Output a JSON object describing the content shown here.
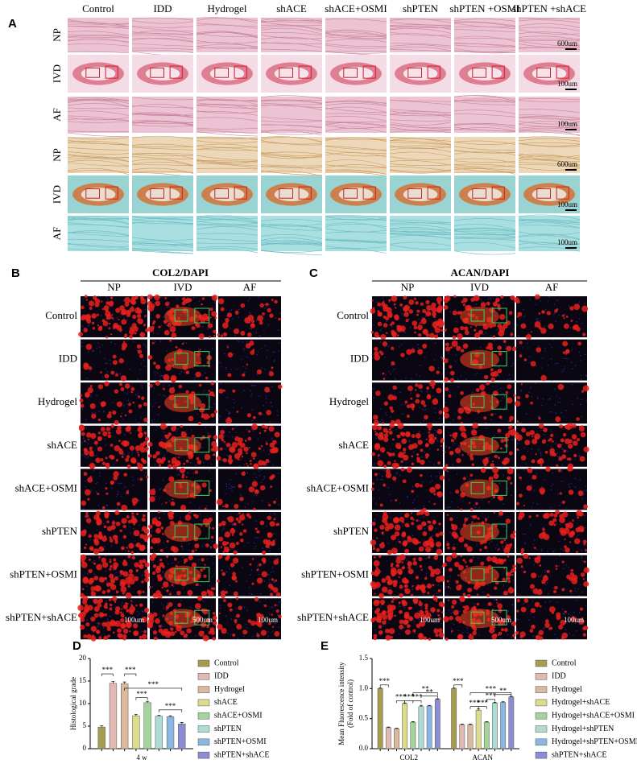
{
  "panel_a": {
    "label": "A",
    "columns": [
      "Control",
      "IDD",
      "Hydrogel",
      "shACE",
      "shACE+OSMI",
      "shPTEN",
      "shPTEN +OSMI",
      "shPTEN +shACE"
    ],
    "rows": [
      "NP",
      "IVD",
      "AF",
      "NP",
      "IVD",
      "AF"
    ],
    "scale_labels": [
      "600um",
      "100um",
      "100um",
      "600um",
      "100um",
      "100um"
    ]
  },
  "panel_b": {
    "label": "B",
    "title": "COL2/DAPI",
    "columns": [
      "NP",
      "IVD",
      "AF"
    ],
    "rows": [
      "Control",
      "IDD",
      "Hydrogel",
      "shACE",
      "shACE+OSMI",
      "shPTEN",
      "shPTEN+OSMI",
      "shPTEN+shACE"
    ],
    "scale_labels": [
      "100um",
      "500um",
      "100um"
    ]
  },
  "panel_c": {
    "label": "C",
    "title": "ACAN/DAPI",
    "columns": [
      "NP",
      "IVD",
      "AF"
    ],
    "rows": [
      "Control",
      "IDD",
      "Hydrogel",
      "shACE",
      "shACE+OSMI",
      "shPTEN",
      "shPTEN+OSMI",
      "shPTEN+shACE"
    ],
    "scale_labels": [
      "100um",
      "500um",
      "100um"
    ]
  },
  "chart_data": [
    {
      "type": "bar",
      "panel_label": "D",
      "y_label": "Histological grade",
      "categories": [
        "4 w"
      ],
      "ylim": [
        0,
        20
      ],
      "yticks": [
        0,
        5,
        10,
        15,
        20
      ],
      "series": [
        {
          "name": "Control",
          "color": "#a69c50",
          "values": [
            4.8
          ],
          "errors": [
            0.3
          ]
        },
        {
          "name": "IDD",
          "color": "#e2b8b4",
          "values": [
            14.5
          ],
          "errors": [
            0.4
          ]
        },
        {
          "name": "Hydrogel",
          "color": "#dcb89c",
          "values": [
            14.4
          ],
          "errors": [
            0.4
          ]
        },
        {
          "name": "shACE",
          "color": "#dcdc8c",
          "values": [
            7.3
          ],
          "errors": [
            0.3
          ]
        },
        {
          "name": "shACE+OSMI",
          "color": "#a2d49c",
          "values": [
            10.2
          ],
          "errors": [
            0.3
          ]
        },
        {
          "name": "shPTEN",
          "color": "#acdcd4",
          "values": [
            7.2
          ],
          "errors": [
            0.2
          ]
        },
        {
          "name": "shPTEN+OSMI",
          "color": "#8cb6e2",
          "values": [
            7.1
          ],
          "errors": [
            0.2
          ]
        },
        {
          "name": "shPTEN+shACE",
          "color": "#8c8cd2",
          "values": [
            5.5
          ],
          "errors": [
            0.3
          ]
        }
      ],
      "significance": [
        "***",
        "***",
        "***",
        "***",
        "***"
      ]
    },
    {
      "type": "bar",
      "panel_label": "E",
      "y_label": [
        "Mean Fluorescence intensity",
        "(Fold of control)"
      ],
      "categories": [
        "COL2",
        "ACAN"
      ],
      "ylim": [
        0,
        1.5
      ],
      "yticks": [
        {
          "value": 0,
          "label": "0.0"
        },
        {
          "value": 0.5,
          "label": "0.5"
        },
        {
          "value": 1,
          "label": "1.0"
        },
        {
          "value": 1.5,
          "label": "1.5"
        }
      ],
      "series": [
        {
          "name": "Control",
          "color": "#a69c50",
          "values": [
            1.0,
            1.0
          ],
          "errors": [
            0.01,
            0.01
          ]
        },
        {
          "name": "IDD",
          "color": "#e2b8b4",
          "values": [
            0.35,
            0.4
          ],
          "errors": [
            0.01,
            0.01
          ]
        },
        {
          "name": "Hydrogel",
          "color": "#dcb89c",
          "values": [
            0.33,
            0.4
          ],
          "errors": [
            0.01,
            0.01
          ]
        },
        {
          "name": "Hydrogel+shACE",
          "color": "#dcdc8c",
          "values": [
            0.75,
            0.64
          ],
          "errors": [
            0.01,
            0.02
          ]
        },
        {
          "name": "Hydrogel+shACE+OSMI",
          "color": "#a2d49c",
          "values": [
            0.44,
            0.44
          ],
          "errors": [
            0.01,
            0.01
          ]
        },
        {
          "name": "Hydrogel+shPTEN",
          "color": "#acdcd4",
          "values": [
            0.7,
            0.76
          ],
          "errors": [
            0.02,
            0.01
          ]
        },
        {
          "name": "Hydrogel+shPTEN+OSMI",
          "color": "#8cb6e2",
          "values": [
            0.71,
            0.77
          ],
          "errors": [
            0.01,
            0.01
          ]
        },
        {
          "name": "shPTEN+shACE",
          "color": "#8c8cd2",
          "values": [
            0.82,
            0.86
          ],
          "errors": [
            0.01,
            0.01
          ]
        }
      ],
      "significance": [
        "***",
        "***",
        "***",
        "***",
        "**",
        "**",
        "***",
        "***",
        "***",
        "***",
        "***",
        "**"
      ]
    }
  ]
}
